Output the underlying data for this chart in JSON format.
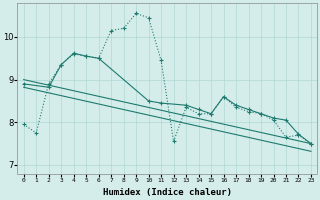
{
  "xlabel": "Humidex (Indice chaleur)",
  "ylabel": "",
  "xlim": [
    -0.5,
    23.5
  ],
  "ylim": [
    6.8,
    10.8
  ],
  "yticks": [
    7,
    8,
    9,
    10
  ],
  "xticks": [
    0,
    1,
    2,
    3,
    4,
    5,
    6,
    7,
    8,
    9,
    10,
    11,
    12,
    13,
    14,
    15,
    16,
    17,
    18,
    19,
    20,
    21,
    22,
    23
  ],
  "background_color": "#d4edeb",
  "grid_color": "#b0d8d4",
  "line_color": "#1e7a6e",
  "line1_x": [
    0,
    1,
    2,
    3,
    4,
    5,
    6,
    7,
    8,
    9,
    10,
    11,
    12,
    13,
    14,
    15,
    16,
    17,
    18,
    19,
    20,
    21,
    22,
    23
  ],
  "line1_y": [
    7.95,
    7.75,
    8.9,
    9.35,
    9.6,
    9.55,
    9.5,
    10.15,
    10.2,
    10.55,
    10.45,
    9.45,
    7.55,
    8.35,
    8.2,
    8.2,
    8.6,
    8.35,
    8.25,
    8.2,
    8.05,
    7.65,
    7.7,
    7.5
  ],
  "line2_x": [
    0,
    2,
    3,
    4,
    5,
    6,
    10,
    11,
    13,
    14,
    15,
    16,
    17,
    18,
    19,
    20,
    21,
    22,
    23
  ],
  "line2_y": [
    8.9,
    8.82,
    9.35,
    9.62,
    9.55,
    9.5,
    8.5,
    8.45,
    8.4,
    8.3,
    8.2,
    8.6,
    8.4,
    8.3,
    8.2,
    8.1,
    8.05,
    7.72,
    7.5
  ],
  "line3_x": [
    0,
    23
  ],
  "line3_y": [
    9.0,
    7.5
  ],
  "line4_x": [
    0,
    23
  ],
  "line4_y": [
    8.82,
    7.32
  ],
  "markersize": 3,
  "linewidth": 0.8
}
